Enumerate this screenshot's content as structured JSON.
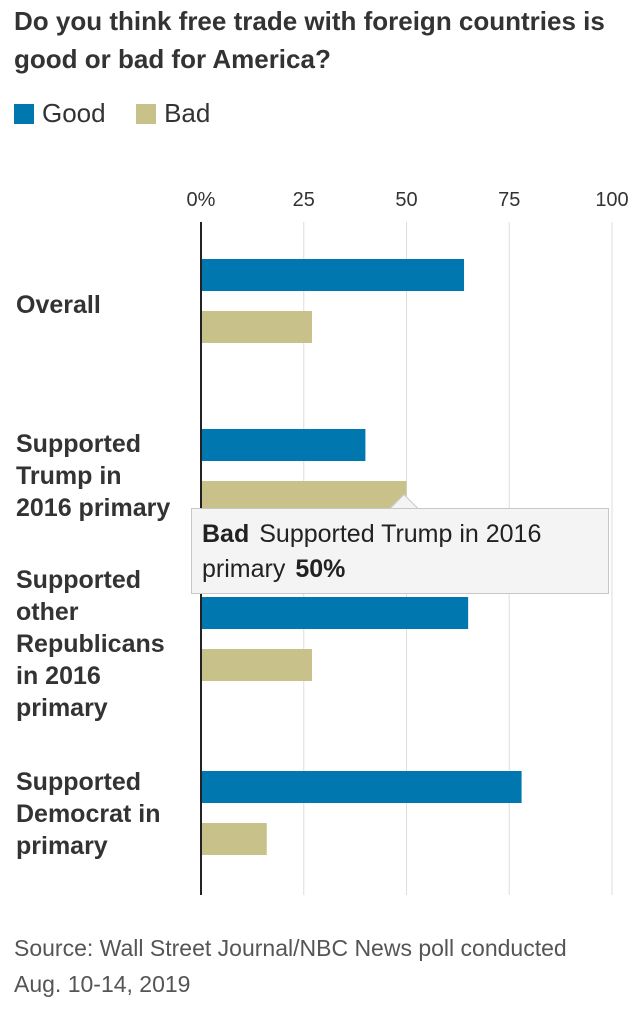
{
  "chart_data": {
    "type": "bar",
    "orientation": "horizontal",
    "title": "Do you think free trade with foreign countries is good or bad for America?",
    "categories": [
      "Overall",
      "Supported Trump in 2016 primary",
      "Supported other Republicans in 2016 primary",
      "Supported Democrat in primary"
    ],
    "series": [
      {
        "name": "Good",
        "color": "#0177b0",
        "values": [
          64,
          40,
          65,
          78
        ]
      },
      {
        "name": "Bad",
        "color": "#c8c18a",
        "values": [
          27,
          50,
          27,
          16
        ]
      }
    ],
    "xlim": [
      0,
      100
    ],
    "x_ticks": [
      "0%",
      "25",
      "50",
      "75",
      "100"
    ],
    "grid": true,
    "legend": "top-left",
    "tooltip": {
      "series": "Bad",
      "category": "Supported Trump in 2016 primary",
      "value": "50%"
    },
    "source": "Source: Wall Street Journal/NBC News poll conducted Aug. 10-14, 2019"
  },
  "category_lines": [
    [
      "Overall"
    ],
    [
      "Supported",
      "Trump in",
      "2016 primary"
    ],
    [
      "Supported",
      "other",
      "Republicans",
      "in 2016",
      "primary"
    ],
    [
      "Supported",
      "Democrat in",
      "primary"
    ]
  ]
}
